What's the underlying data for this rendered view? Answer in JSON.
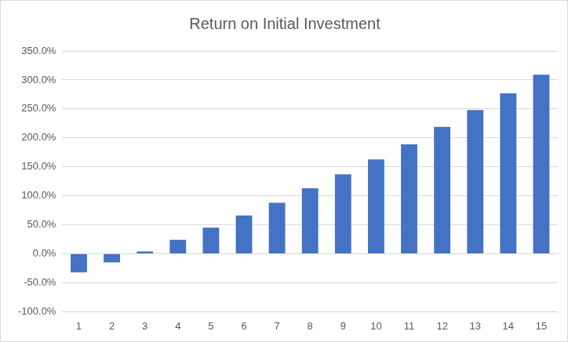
{
  "chart_data": {
    "type": "bar",
    "title": "Return on Initial Investment",
    "categories": [
      "1",
      "2",
      "3",
      "4",
      "5",
      "6",
      "7",
      "8",
      "9",
      "10",
      "11",
      "12",
      "13",
      "14",
      "15"
    ],
    "values": [
      -32,
      -15,
      4,
      24,
      45,
      66,
      88,
      113,
      137,
      163,
      189,
      219,
      248,
      277,
      309
    ],
    "color": "#4472c4",
    "ylim": [
      -100,
      350
    ],
    "yticks": [
      {
        "value": -100,
        "label": "-100.0%"
      },
      {
        "value": -50,
        "label": "-50.0%"
      },
      {
        "value": 0,
        "label": "0.0%"
      },
      {
        "value": 50,
        "label": "50.0%"
      },
      {
        "value": 100,
        "label": "100.0%"
      },
      {
        "value": 150,
        "label": "150.0%"
      },
      {
        "value": 200,
        "label": "200.0%"
      },
      {
        "value": 250,
        "label": "250.0%"
      },
      {
        "value": 300,
        "label": "300.0%"
      },
      {
        "value": 350,
        "label": "350.0%"
      }
    ],
    "grid": true
  }
}
